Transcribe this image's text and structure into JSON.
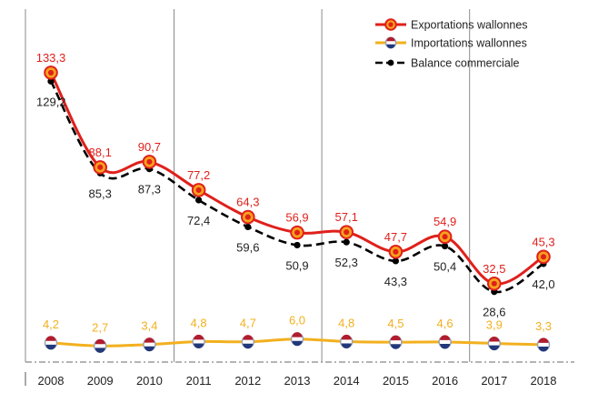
{
  "chart_data": {
    "type": "line",
    "title": "",
    "xlabel": "",
    "ylabel": "",
    "categories": [
      "2008",
      "2009",
      "2010",
      "2011",
      "2012",
      "2013",
      "2014",
      "2015",
      "2016",
      "2017",
      "2018"
    ],
    "ylim": [
      0,
      140
    ],
    "grid": "vertical lines after 2010, 2013 and 2016",
    "legend_position": "top-right",
    "series": [
      {
        "name": "Exportations wallonnes",
        "color": "#e0201b",
        "marker": "red-yellow-disc-icon",
        "values": [
          133.3,
          88.1,
          90.7,
          77.2,
          64.3,
          56.9,
          57.1,
          47.7,
          54.9,
          32.5,
          45.3
        ],
        "labels": [
          "133,3",
          "88,1",
          "90,7",
          "77,2",
          "64,3",
          "56,9",
          "57,1",
          "47,7",
          "54,9",
          "32,5",
          "45,3"
        ]
      },
      {
        "name": "Importations wallonnes",
        "color": "#f2b01e",
        "marker": "dutch-flag-disc-icon",
        "values": [
          4.2,
          2.7,
          3.4,
          4.8,
          4.7,
          6.0,
          4.8,
          4.5,
          4.6,
          3.9,
          3.3
        ],
        "labels": [
          "4,2",
          "2,7",
          "3,4",
          "4,8",
          "4,7",
          "6,0",
          "4,8",
          "4,5",
          "4,6",
          "3,9",
          "3,3"
        ]
      },
      {
        "name": "Balance commerciale",
        "color": "#000000",
        "marker": "black-dot-icon",
        "values": [
          129.2,
          85.3,
          87.3,
          72.4,
          59.6,
          50.9,
          52.3,
          43.3,
          50.4,
          28.6,
          42.0
        ],
        "labels": [
          "129,2",
          "85,3",
          "87,3",
          "72,4",
          "59,6",
          "50,9",
          "52,3",
          "43,3",
          "50,4",
          "28,6",
          "42,0"
        ]
      }
    ]
  }
}
